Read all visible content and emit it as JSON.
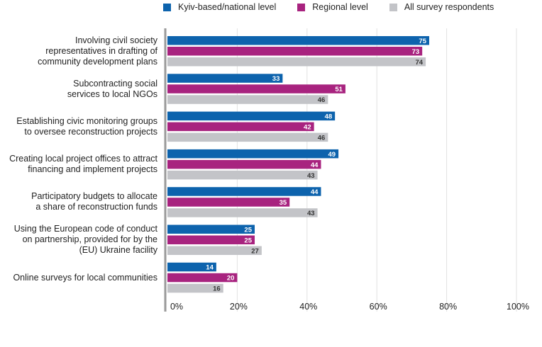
{
  "chart_data": {
    "type": "bar",
    "orientation": "horizontal",
    "categories": [
      "Involving civil society\nrepresentatives in drafting of\ncommunity development plans",
      "Subcontracting social\nservices to local NGOs",
      "Establishing civic monitoring groups\nto oversee reconstruction projects",
      "Creating local project offices to attract\nfinancing and implement projects",
      "Participatory budgets to allocate\na share of reconstruction funds",
      "Using the European code of conduct\non partnership, provided for by the\n(EU) Ukraine facility",
      "Online surveys for local communities"
    ],
    "series": [
      {
        "name": "Kyiv-based/national level",
        "color": "#0d63ad",
        "values": [
          75,
          33,
          48,
          49,
          44,
          25,
          14
        ]
      },
      {
        "name": "Regional level",
        "color": "#a8237f",
        "values": [
          73,
          51,
          42,
          44,
          35,
          25,
          20
        ]
      },
      {
        "name": "All survey respondents",
        "color": "#c3c4c8",
        "values": [
          74,
          46,
          46,
          43,
          43,
          27,
          16
        ]
      }
    ],
    "xticks": [
      "0%",
      "20%",
      "40%",
      "60%",
      "80%",
      "100%"
    ],
    "xlim": [
      0,
      100
    ],
    "grid": true,
    "legend_position": "top"
  }
}
